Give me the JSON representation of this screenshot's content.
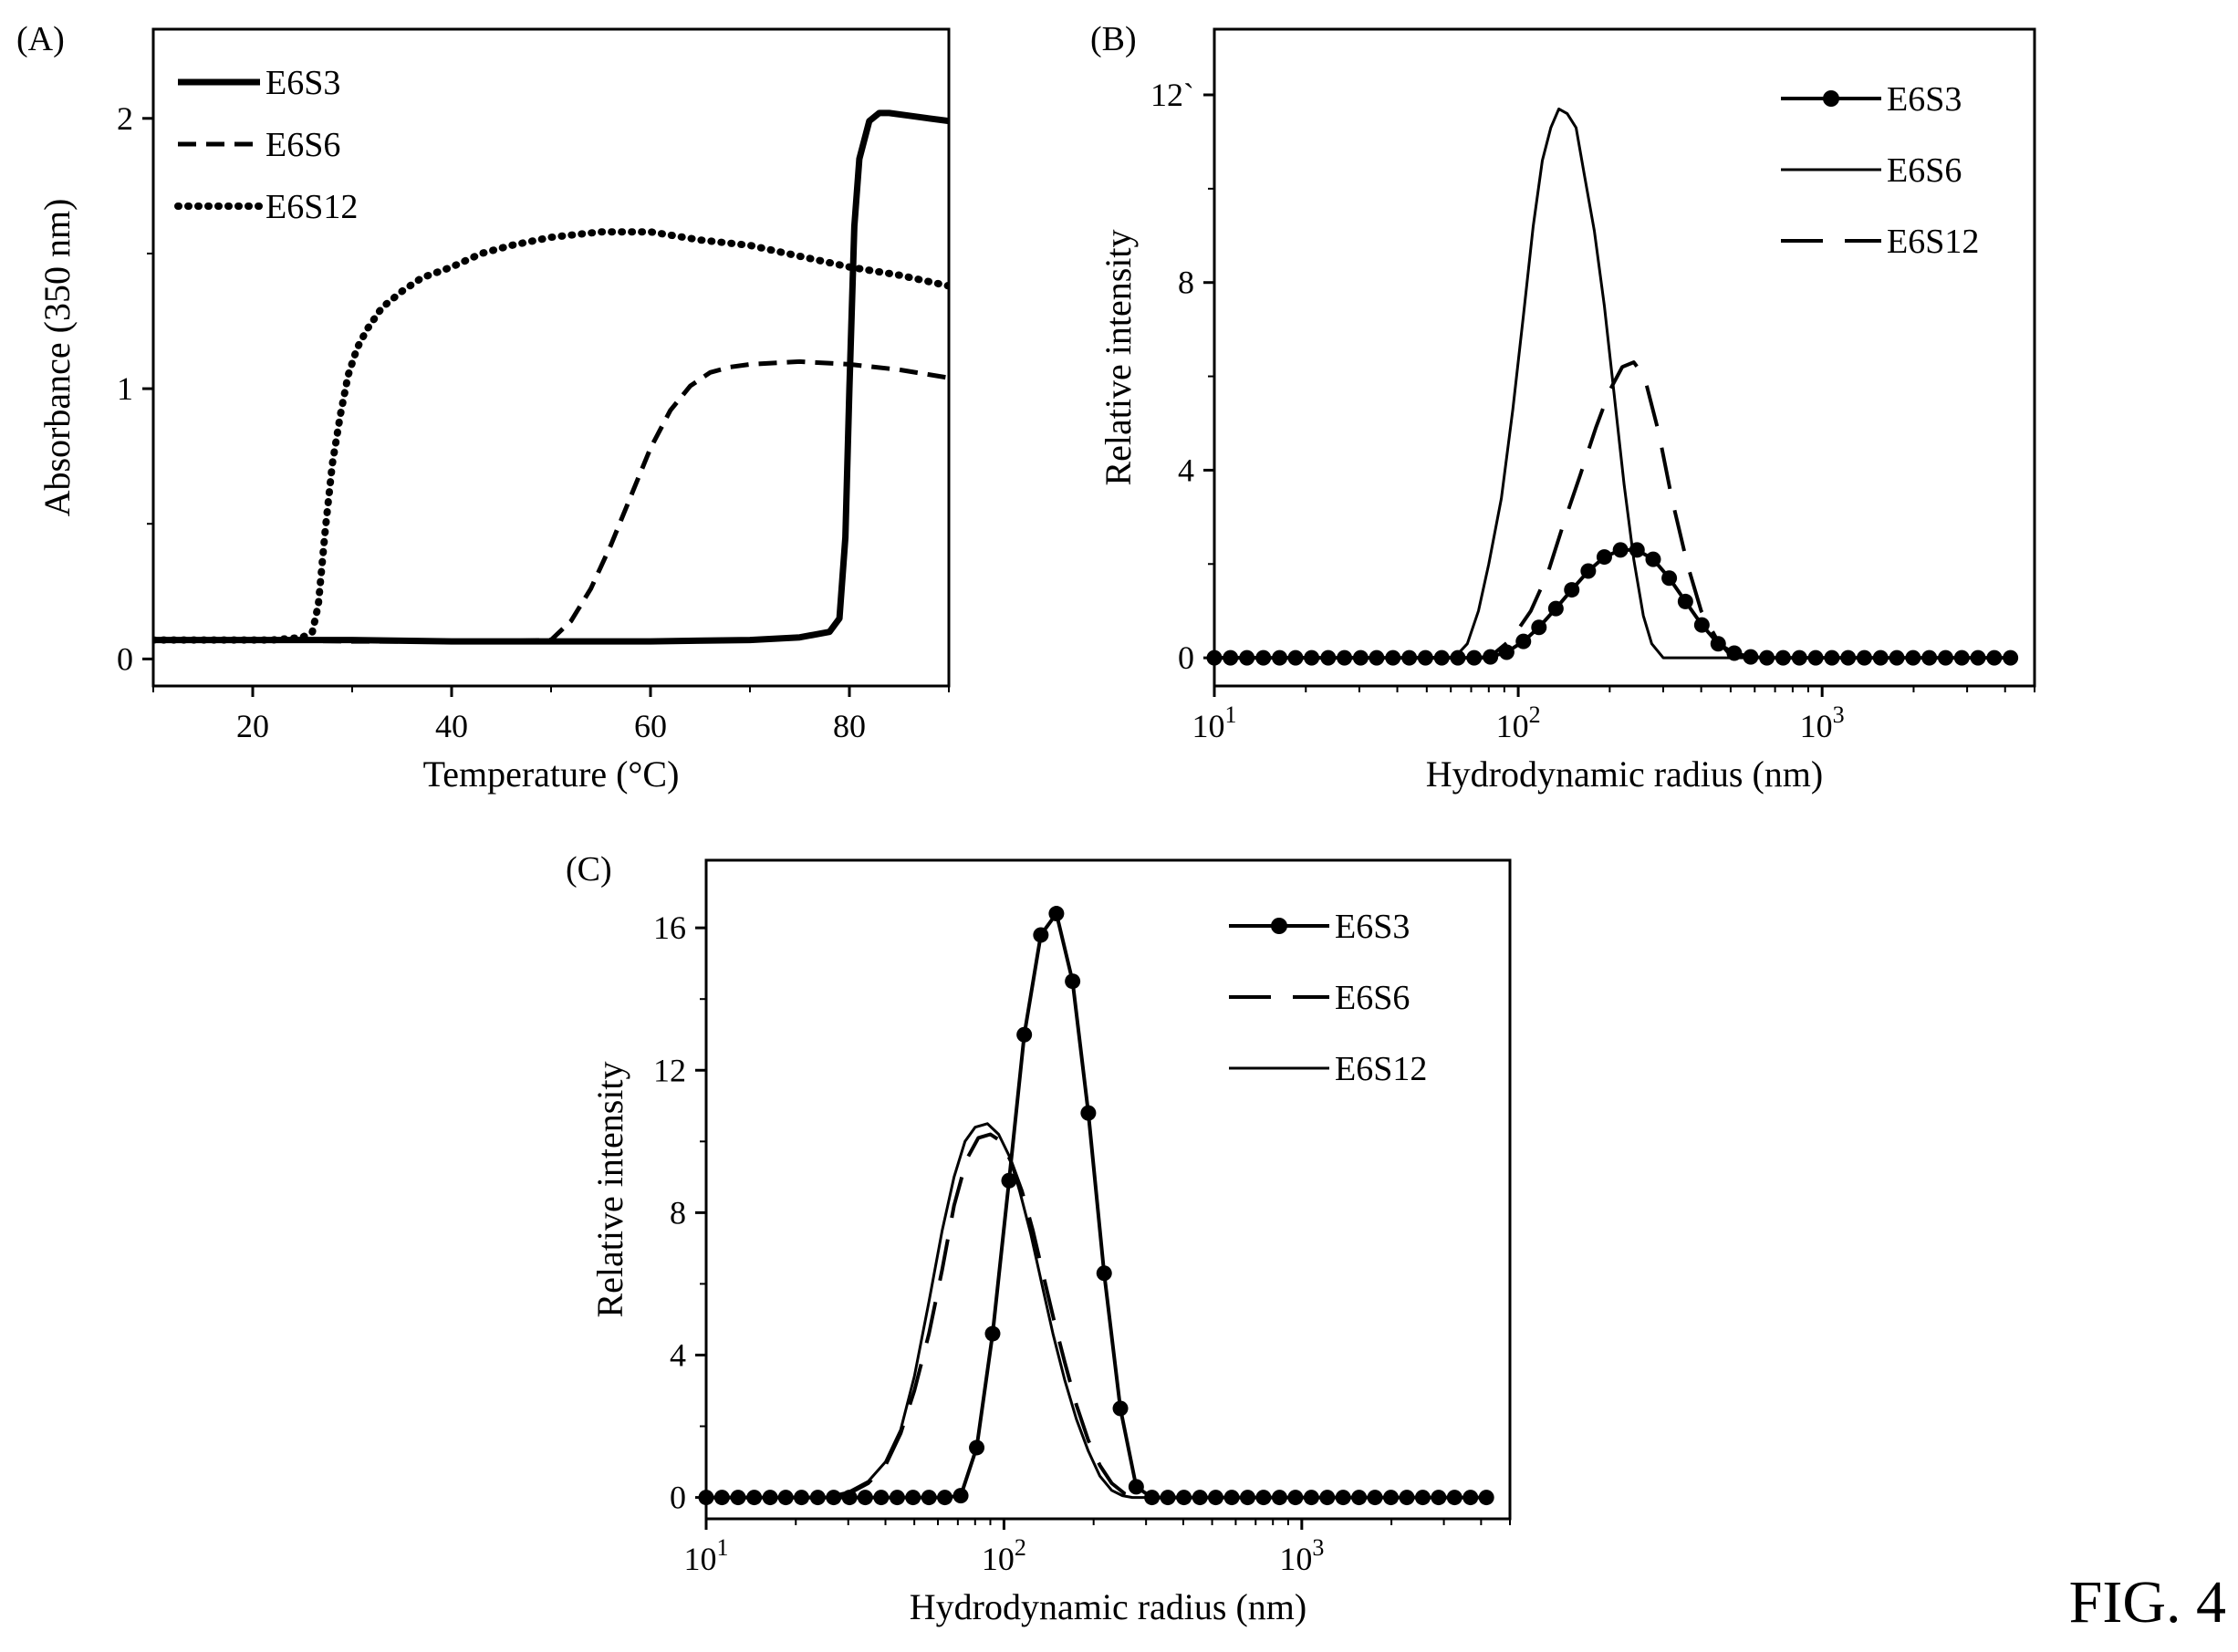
{
  "figure_label": "FIG. 4",
  "chart_data": [
    {
      "id": "A",
      "panel_label": "(A)",
      "type": "line",
      "xlabel": "Temperature (°C)",
      "ylabel": "Absorbance (350 nm)",
      "xlim": [
        10,
        90
      ],
      "ylim": [
        -0.1,
        2.33
      ],
      "xscale": "linear",
      "xticks": [
        {
          "v": 20,
          "label": "20"
        },
        {
          "v": 40,
          "label": "40"
        },
        {
          "v": 60,
          "label": "60"
        },
        {
          "v": 80,
          "label": "80"
        }
      ],
      "yticks": [
        {
          "v": 0,
          "label": "0"
        },
        {
          "v": 1,
          "label": "1"
        },
        {
          "v": 2,
          "label": "2"
        }
      ],
      "legend_position": "top-left",
      "series": [
        {
          "name": "E6S3",
          "style": "solid-thick",
          "x": [
            10,
            20,
            30,
            40,
            50,
            60,
            70,
            75,
            78,
            79,
            79.6,
            80,
            80.5,
            81,
            82,
            83,
            84,
            86,
            88,
            90
          ],
          "y": [
            0.07,
            0.07,
            0.07,
            0.065,
            0.065,
            0.065,
            0.07,
            0.08,
            0.1,
            0.15,
            0.45,
            1.0,
            1.6,
            1.85,
            1.99,
            2.02,
            2.02,
            2.01,
            2.0,
            1.99
          ]
        },
        {
          "name": "E6S6",
          "style": "dashed",
          "x": [
            10,
            20,
            30,
            40,
            45,
            50,
            52,
            54,
            56,
            58,
            60,
            62,
            64,
            66,
            68,
            70,
            75,
            80,
            85,
            90
          ],
          "y": [
            0.07,
            0.07,
            0.065,
            0.065,
            0.065,
            0.07,
            0.14,
            0.26,
            0.42,
            0.6,
            0.78,
            0.92,
            1.01,
            1.06,
            1.08,
            1.09,
            1.1,
            1.09,
            1.07,
            1.04
          ]
        },
        {
          "name": "E6S12",
          "style": "dotted",
          "x": [
            10,
            14,
            18,
            22,
            25,
            26,
            26.6,
            27.3,
            28,
            28.8,
            29.6,
            30.5,
            31.5,
            33,
            35,
            37,
            40,
            43,
            46,
            50,
            55,
            60,
            65,
            70,
            75,
            80,
            85,
            90
          ],
          "y": [
            0.07,
            0.07,
            0.07,
            0.07,
            0.08,
            0.1,
            0.2,
            0.48,
            0.72,
            0.9,
            1.05,
            1.15,
            1.22,
            1.3,
            1.36,
            1.41,
            1.45,
            1.5,
            1.53,
            1.56,
            1.58,
            1.58,
            1.55,
            1.53,
            1.49,
            1.45,
            1.42,
            1.38
          ]
        }
      ]
    },
    {
      "id": "B",
      "panel_label": "(B)",
      "type": "line",
      "xlabel": "Hydrodynamic radius (nm)",
      "ylabel": "Relative intensity",
      "xlim": [
        10,
        5000
      ],
      "ylim": [
        -0.6,
        13.4
      ],
      "xscale": "log",
      "xticks": [
        {
          "v": 10,
          "base": "10",
          "exp": "1"
        },
        {
          "v": 100,
          "base": "10",
          "exp": "2"
        },
        {
          "v": 1000,
          "base": "10",
          "exp": "3"
        }
      ],
      "yticks": [
        {
          "v": 0,
          "label": "0"
        },
        {
          "v": 4,
          "label": "4"
        },
        {
          "v": 8,
          "label": "8"
        },
        {
          "v": 12,
          "label": "12`"
        }
      ],
      "legend_position": "top-right",
      "series": [
        {
          "name": "E6S3",
          "style": "solid-markers",
          "x": [
            10,
            11.3,
            12.8,
            14.5,
            16.4,
            18.5,
            20.9,
            23.7,
            26.8,
            30.3,
            34.2,
            38.7,
            43.8,
            49.5,
            56,
            63.3,
            71.6,
            81,
            91.6,
            104,
            117,
            133,
            150,
            170,
            192,
            217,
            246,
            278,
            314,
            355,
            402,
            455,
            514,
            582,
            658,
            744,
            842,
            952,
            1077,
            1218,
            1377,
            1557,
            1761,
            1992,
            2253,
            2548,
            2881,
            3258,
            3685,
            4167
          ],
          "y": [
            0,
            0,
            0,
            0,
            0,
            0,
            0,
            0,
            0,
            0,
            0,
            0,
            0,
            0,
            0,
            0,
            0,
            0.02,
            0.12,
            0.35,
            0.65,
            1.05,
            1.45,
            1.85,
            2.15,
            2.3,
            2.3,
            2.1,
            1.7,
            1.2,
            0.7,
            0.3,
            0.1,
            0.02,
            0,
            0,
            0,
            0,
            0,
            0,
            0,
            0,
            0,
            0,
            0,
            0,
            0,
            0,
            0,
            0
          ]
        },
        {
          "name": "E6S6",
          "style": "solid-thin",
          "x": [
            10,
            50,
            62,
            68,
            74,
            80,
            88,
            96,
            104,
            112,
            120,
            128,
            136,
            145,
            155,
            165,
            178,
            192,
            207,
            223,
            240,
            258,
            275,
            300,
            330,
            400,
            500,
            600
          ],
          "y": [
            0,
            0,
            0.02,
            0.3,
            1.0,
            2.0,
            3.4,
            5.3,
            7.3,
            9.2,
            10.6,
            11.3,
            11.7,
            11.6,
            11.3,
            10.3,
            9.1,
            7.5,
            5.6,
            3.7,
            2.1,
            0.9,
            0.3,
            0,
            0,
            0,
            0,
            0
          ]
        },
        {
          "name": "E6S12",
          "style": "dashed-long",
          "x": [
            10,
            80,
            95,
            110,
            125,
            140,
            160,
            180,
            200,
            220,
            240,
            260,
            290,
            320,
            360,
            400,
            450,
            500,
            560
          ],
          "y": [
            0,
            0,
            0.4,
            1.0,
            1.8,
            2.8,
            3.9,
            4.9,
            5.7,
            6.2,
            6.3,
            6.0,
            4.8,
            3.4,
            2.0,
            1.0,
            0.4,
            0.05,
            0
          ]
        }
      ]
    },
    {
      "id": "C",
      "panel_label": "(C)",
      "type": "line",
      "xlabel": "Hydrodynamic radius (nm)",
      "ylabel": "Relative intensity",
      "xlim": [
        10,
        5000
      ],
      "ylim": [
        -0.6,
        17.9
      ],
      "xscale": "log",
      "xticks": [
        {
          "v": 10,
          "base": "10",
          "exp": "1"
        },
        {
          "v": 100,
          "base": "10",
          "exp": "2"
        },
        {
          "v": 1000,
          "base": "10",
          "exp": "3"
        }
      ],
      "yticks": [
        {
          "v": 0,
          "label": "0"
        },
        {
          "v": 4,
          "label": "4"
        },
        {
          "v": 8,
          "label": "8"
        },
        {
          "v": 12,
          "label": "12"
        },
        {
          "v": 16,
          "label": "16"
        }
      ],
      "legend_position": "top-right",
      "series": [
        {
          "name": "E6S3",
          "style": "solid-markers",
          "x": [
            10,
            11.3,
            12.8,
            14.5,
            16.4,
            18.5,
            20.9,
            23.7,
            26.8,
            30.3,
            34.2,
            38.7,
            43.8,
            49.5,
            56,
            63.3,
            71.6,
            81,
            91.6,
            104,
            117,
            133,
            150,
            170,
            192,
            217,
            246,
            278,
            314,
            355,
            402,
            455,
            514,
            582,
            658,
            744,
            842,
            952,
            1077,
            1218,
            1377,
            1557,
            1761,
            1992,
            2253,
            2548,
            2881,
            3258,
            3685,
            4167
          ],
          "y": [
            0,
            0,
            0,
            0,
            0,
            0,
            0,
            0,
            0,
            0,
            0,
            0,
            0,
            0,
            0,
            0,
            0.05,
            1.4,
            4.6,
            8.9,
            13.0,
            15.8,
            16.4,
            14.5,
            10.8,
            6.3,
            2.5,
            0.3,
            0,
            0,
            0,
            0,
            0,
            0,
            0,
            0,
            0,
            0,
            0,
            0,
            0,
            0,
            0,
            0,
            0,
            0,
            0,
            0,
            0,
            0
          ]
        },
        {
          "name": "E6S6",
          "style": "dashed-long",
          "x": [
            10,
            25,
            30,
            35,
            40,
            45,
            50,
            56,
            62,
            68,
            75,
            82,
            90,
            98,
            106,
            115,
            125,
            135,
            147,
            160,
            175,
            192,
            210,
            230,
            255,
            280,
            320,
            360,
            500
          ],
          "y": [
            0,
            0,
            0.1,
            0.4,
            0.9,
            1.8,
            3.0,
            4.6,
            6.4,
            8.2,
            9.5,
            10.1,
            10.2,
            10.0,
            9.4,
            8.6,
            7.5,
            6.3,
            5.0,
            3.8,
            2.6,
            1.6,
            0.9,
            0.4,
            0.1,
            0,
            0,
            0,
            0
          ]
        },
        {
          "name": "E6S12",
          "style": "solid-thin",
          "x": [
            10,
            25,
            30,
            35,
            40,
            45,
            50,
            56,
            62,
            68,
            74,
            80,
            88,
            96,
            104,
            113,
            123,
            134,
            146,
            160,
            175,
            192,
            210,
            230,
            250,
            270,
            290,
            500
          ],
          "y": [
            0,
            0,
            0.15,
            0.45,
            1.0,
            1.9,
            3.4,
            5.5,
            7.5,
            9.0,
            10.0,
            10.4,
            10.5,
            10.2,
            9.6,
            8.6,
            7.4,
            6.0,
            4.6,
            3.3,
            2.2,
            1.3,
            0.6,
            0.2,
            0.05,
            0,
            0,
            0
          ]
        }
      ]
    }
  ]
}
